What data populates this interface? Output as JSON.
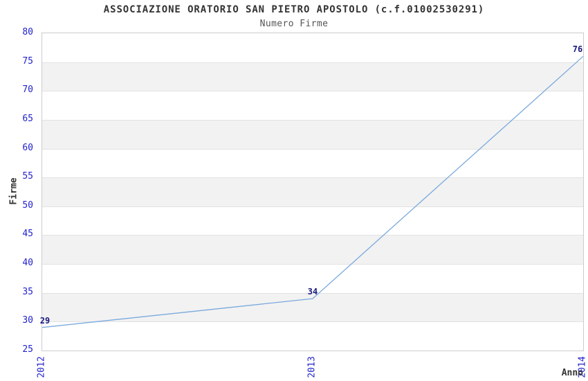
{
  "chart_data": {
    "type": "line",
    "title": "ASSOCIAZIONE ORATORIO SAN PIETRO APOSTOLO (c.f.01002530291)",
    "subtitle": "Numero Firme",
    "xlabel": "Anno",
    "ylabel": "Firme",
    "categories": [
      "2012",
      "2013",
      "2014"
    ],
    "values": [
      29,
      34,
      76
    ],
    "point_labels": [
      "29",
      "34",
      "76"
    ],
    "ylim": [
      25,
      80
    ],
    "ytick_step": 5,
    "yticks": [
      80,
      75,
      70,
      65,
      60,
      55,
      50,
      45,
      40,
      35,
      30,
      25
    ],
    "legend": "none",
    "grid": "horizontal-bands-alternating",
    "colors": {
      "line": "#7aa9dc",
      "tick_label": "#2222cc",
      "point_label": "#1a1a80",
      "title": "#333333",
      "subtitle": "#555555",
      "axis_label": "#333333",
      "band_gray": "#f2f2f2",
      "gridline": "#e2e2e2",
      "plot_border": "#cccccc",
      "background": "#ffffff"
    }
  }
}
